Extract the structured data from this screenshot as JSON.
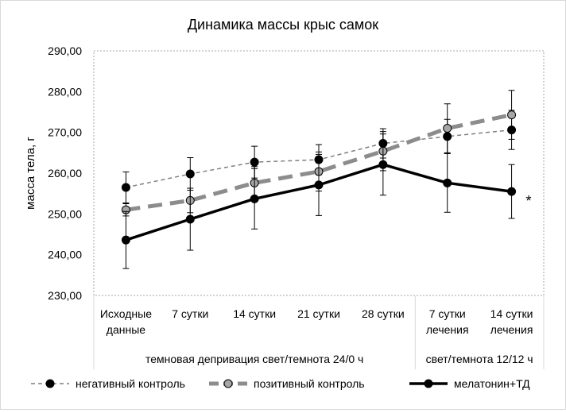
{
  "chart_data": {
    "type": "line",
    "title": "Динамика массы крыс самок",
    "ylabel": "масса тела, г",
    "xlabel": "",
    "ylim": [
      230,
      290
    ],
    "y_ticks": [
      "230,00",
      "240,00",
      "250,00",
      "260,00",
      "270,00",
      "280,00",
      "290,00"
    ],
    "y_tick_values": [
      230,
      240,
      250,
      260,
      270,
      280,
      290
    ],
    "categories": [
      [
        "Исходные",
        "данные"
      ],
      [
        "7 сутки"
      ],
      [
        "14 сутки"
      ],
      [
        "21 сутки"
      ],
      [
        "28 сутки"
      ],
      [
        "7 сутки",
        "лечения"
      ],
      [
        "14 сутки",
        "лечения"
      ]
    ],
    "groups": [
      {
        "label": "темновая депривация свет/темнота 24/0 ч",
        "from": 0,
        "to": 4
      },
      {
        "label": "свет/темнота 12/12 ч",
        "from": 5,
        "to": 6
      }
    ],
    "annotation": "*",
    "legend_position": "bottom",
    "grid": false,
    "series": [
      {
        "name": "негативный контроль",
        "style": "dashed-thin",
        "color": "#7f7f7f",
        "marker_color": "#000000",
        "values": [
          256.5,
          259.8,
          262.7,
          263.3,
          267.3,
          269.0,
          270.6
        ],
        "error": [
          3.8,
          4.0,
          3.9,
          3.7,
          3.6,
          4.2,
          4.8
        ]
      },
      {
        "name": "позитивный контроль",
        "style": "dashed-thick",
        "color": "#8c8c8c",
        "marker_color": "#a6a6a6",
        "values": [
          251.0,
          253.3,
          257.6,
          260.4,
          265.4,
          271.0,
          274.3
        ],
        "error": [
          1.5,
          3.0,
          4.0,
          4.8,
          4.8,
          6.0,
          6.0
        ]
      },
      {
        "name": "мелатонин+ТД",
        "style": "solid-thick",
        "color": "#000000",
        "marker_color": "#000000",
        "values": [
          243.6,
          248.7,
          253.7,
          257.1,
          262.1,
          257.6,
          255.5
        ],
        "error": [
          7.0,
          7.6,
          7.4,
          7.5,
          7.5,
          7.2,
          6.6
        ]
      }
    ]
  }
}
